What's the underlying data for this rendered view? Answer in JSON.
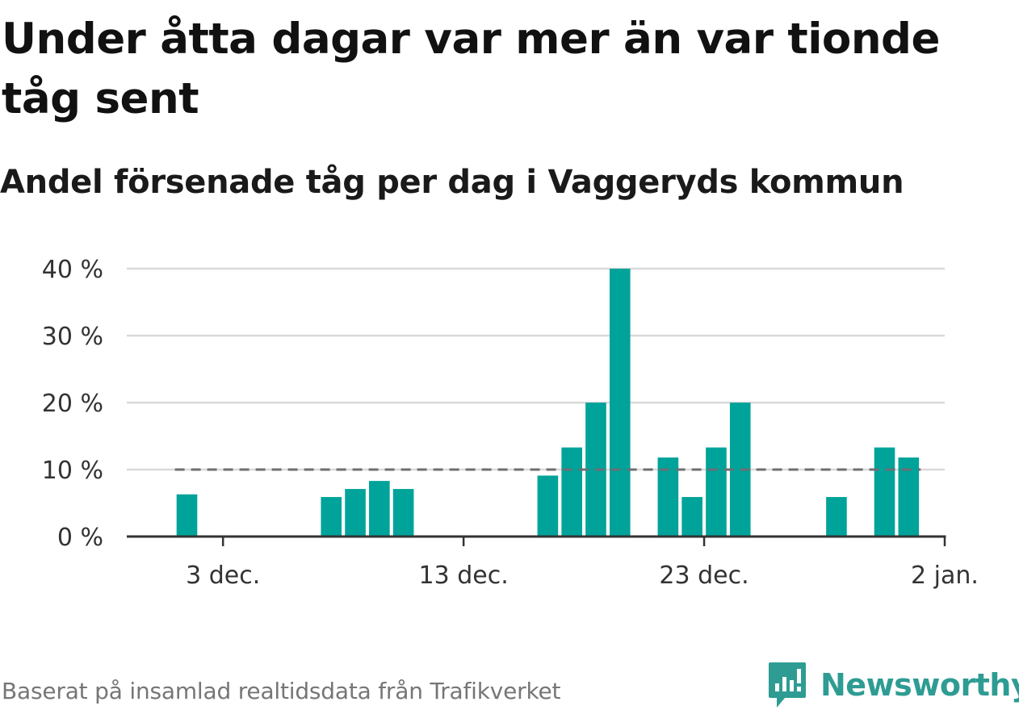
{
  "title": "Under åtta dagar var mer än var tionde tåg sent",
  "subtitle": "Andel försenade tåg per dag i Vaggeryds kommun",
  "source": "Baserat på insamlad realtidsdata från Trafikverket",
  "brand": {
    "name": "Newsworthy",
    "logo_icon": "newsworthy-logo-icon",
    "color": "#2e9c93"
  },
  "chart_data": {
    "type": "bar",
    "x_unit": "date",
    "x_start": "2023-11-29",
    "x_end": "2024-01-02",
    "x": [
      "2023-12-01",
      "2023-12-07",
      "2023-12-08",
      "2023-12-09",
      "2023-12-10",
      "2023-12-16",
      "2023-12-17",
      "2023-12-18",
      "2023-12-19",
      "2023-12-21",
      "2023-12-22",
      "2023-12-23",
      "2023-12-24",
      "2023-12-28",
      "2023-12-30",
      "2023-12-31"
    ],
    "values": [
      6.3,
      5.9,
      7.1,
      8.3,
      7.1,
      9.1,
      13.3,
      20.0,
      40.0,
      11.8,
      5.9,
      13.3,
      20.0,
      5.9,
      13.3,
      11.8
    ],
    "ylim": [
      0,
      40
    ],
    "yticks": [
      0,
      10,
      20,
      30,
      40
    ],
    "ytick_labels": [
      "0 %",
      "10 %",
      "20 %",
      "30 %",
      "40 %"
    ],
    "xticks": [
      "2023-12-03",
      "2023-12-13",
      "2023-12-23",
      "2024-01-02"
    ],
    "xtick_labels": [
      "3 dec.",
      "13 dec.",
      "23 dec.",
      "2 jan."
    ],
    "reference_line": {
      "value": 10,
      "style": "dashed",
      "color": "#6e6e73"
    },
    "bar_color": "#00a39a",
    "grid": true,
    "xlabel": "",
    "ylabel": ""
  }
}
